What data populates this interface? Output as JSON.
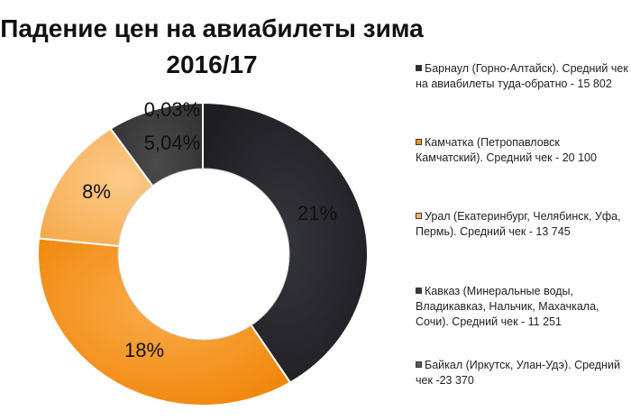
{
  "chart_data": {
    "type": "pie",
    "title_line1": "Падение цен на авиабилеты зима",
    "title_line2": "2016/17",
    "donut": true,
    "slices": [
      {
        "legend": "Барнаул (Горно-Алтайск). Средний чек на авиабилеты туда-обратно - 15 802",
        "label": "21%",
        "value": 21,
        "color": "#2b2b31"
      },
      {
        "legend": "Камчатка (Петропавловск Камчатский). Средний чек - 20 100",
        "label": "18%",
        "value": 18,
        "color": "#f7941d"
      },
      {
        "legend": "Урал (Екатеринбург, Челябинск, Уфа, Пермь). Средний чек - 13 745",
        "label": "8%",
        "value": 8,
        "color": "#fbb664"
      },
      {
        "legend": "Кавказ (Минеральные воды, Владикавказ, Нальчик, Махачкала, Сочи). Средний чек - 11 251",
        "label": "5,04%",
        "value": 5.04,
        "color": "#3b3b3b"
      },
      {
        "legend": "Байкал (Иркутск, Улан-Удэ). Средний чек -23 370",
        "label": "0,03%",
        "value": 0.03,
        "color": "#595959"
      }
    ],
    "legend_position": "right"
  }
}
